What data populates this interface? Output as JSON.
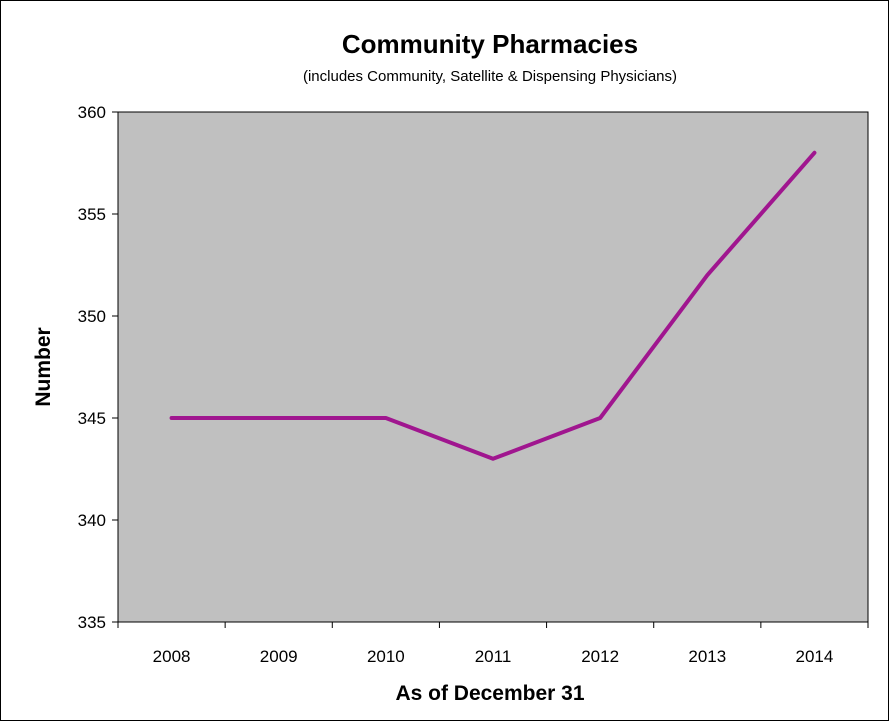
{
  "chart_data": {
    "type": "line",
    "title": "Community Pharmacies",
    "subtitle": "(includes Community, Satellite & Dispensing Physicians)",
    "xlabel": "As of December 31",
    "ylabel": "Number",
    "categories": [
      "2008",
      "2009",
      "2010",
      "2011",
      "2012",
      "2013",
      "2014"
    ],
    "series": [
      {
        "values": [
          345,
          345,
          345,
          343,
          345,
          352,
          358
        ]
      }
    ],
    "ylim": [
      335,
      360
    ],
    "yticks": [
      335,
      340,
      345,
      350,
      355,
      360
    ],
    "grid": false,
    "legend": "none",
    "colors": {
      "line": "#a0168f",
      "plot_background": "#c0c0c0"
    }
  }
}
